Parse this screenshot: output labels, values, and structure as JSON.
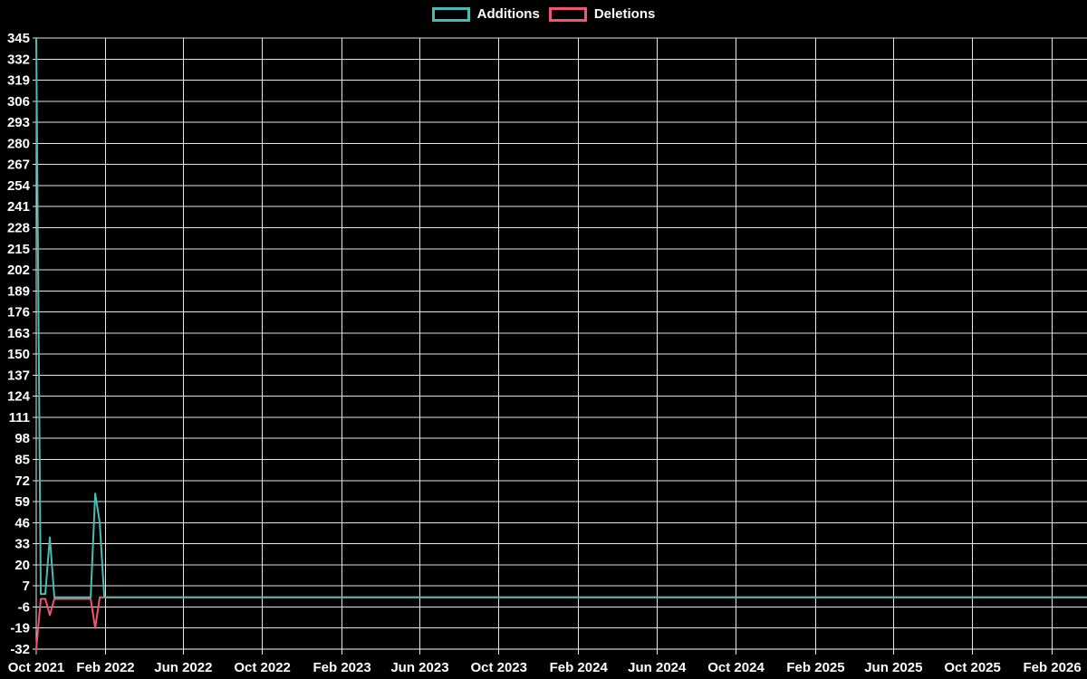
{
  "legend": {
    "items": [
      {
        "label": "Additions",
        "color": "#49bcb4"
      },
      {
        "label": "Deletions",
        "color": "#f25570"
      }
    ]
  },
  "chart_data": {
    "type": "line",
    "title": "",
    "background_color": "#000000",
    "text_color": "#ffffff",
    "grid": true,
    "grid_color": "#e6e6e6",
    "legend_position": "top-center",
    "x_axis": {
      "start_date": "2021-10-17",
      "ticks": [
        {
          "label": "Oct 2021",
          "date": "2021-10-17"
        },
        {
          "label": "Feb 2022",
          "date": "2022-02-01"
        },
        {
          "label": "Jun 2022",
          "date": "2022-06-01"
        },
        {
          "label": "Oct 2022",
          "date": "2022-10-01"
        },
        {
          "label": "Feb 2023",
          "date": "2023-02-01"
        },
        {
          "label": "Jun 2023",
          "date": "2023-06-01"
        },
        {
          "label": "Oct 2023",
          "date": "2023-10-01"
        },
        {
          "label": "Feb 2024",
          "date": "2024-02-01"
        },
        {
          "label": "Jun 2024",
          "date": "2024-06-01"
        },
        {
          "label": "Oct 2024",
          "date": "2024-10-01"
        },
        {
          "label": "Feb 2025",
          "date": "2025-02-01"
        },
        {
          "label": "Jun 2025",
          "date": "2025-06-01"
        },
        {
          "label": "Oct 2025",
          "date": "2025-10-01"
        },
        {
          "label": "Feb 2026",
          "date": "2026-02-01"
        }
      ]
    },
    "y_axis": {
      "min": -32,
      "max": 345,
      "tick_step": 13,
      "tick_labels": [
        345,
        332,
        319,
        306,
        293,
        280,
        267,
        254,
        241,
        228,
        215,
        202,
        189,
        176,
        163,
        150,
        137,
        124,
        111,
        98,
        85,
        72,
        59,
        46,
        33,
        20,
        7,
        -6,
        -19,
        -32
      ]
    },
    "series": [
      {
        "name": "Additions",
        "color": "#49bcb4",
        "points": [
          [
            "2021-10-17",
            345
          ],
          [
            "2021-10-24",
            2
          ],
          [
            "2021-10-31",
            2
          ],
          [
            "2021-11-07",
            37
          ],
          [
            "2021-11-14",
            0
          ],
          [
            "2022-01-09",
            0
          ],
          [
            "2022-01-16",
            64
          ],
          [
            "2022-01-23",
            46
          ],
          [
            "2022-01-30",
            0
          ],
          [
            "2026-03-28",
            0
          ]
        ]
      },
      {
        "name": "Deletions",
        "color": "#f25570",
        "points": [
          [
            "2021-10-17",
            -32
          ],
          [
            "2021-10-24",
            -1
          ],
          [
            "2021-10-31",
            -1
          ],
          [
            "2021-11-07",
            -11
          ],
          [
            "2021-11-14",
            -1
          ],
          [
            "2022-01-09",
            -1
          ],
          [
            "2022-01-16",
            -19
          ],
          [
            "2022-01-23",
            0
          ],
          [
            "2026-03-28",
            0
          ]
        ]
      }
    ]
  }
}
